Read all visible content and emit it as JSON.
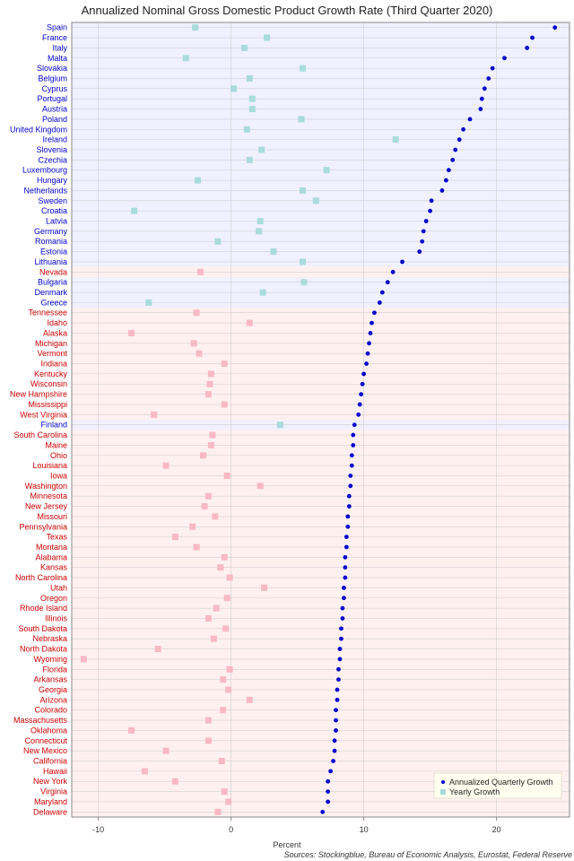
{
  "chart_data": {
    "type": "scatter",
    "title": "Annualized Nominal Gross Domestic Product Growth Rate (Third Quarter 2020)",
    "xlabel": "Percent",
    "source": "Sources: Stockingblue, Bureau of Economic Analysis, Eurostat, Federal Reserve",
    "xlim": [
      -12,
      25.5
    ],
    "xticks": [
      -10,
      0,
      10,
      20
    ],
    "grid": true,
    "legend_position": "bottom-right",
    "legend": [
      "Annualized Quarterly Growth",
      "Yearly Growth"
    ],
    "colors": {
      "eu_label": "#0000cc",
      "us_label": "#cc0000",
      "eu_band": "#f0f0ff",
      "us_band": "#fff0f0",
      "quarterly_point": "#0000cc",
      "eu_yearly": "#a8dcdc",
      "us_yearly": "#f9b8c4",
      "grid": "#d0d0d0"
    },
    "rows": [
      {
        "name": "Spain",
        "region": "eu",
        "quarterly": 24.4,
        "yearly": -2.7
      },
      {
        "name": "France",
        "region": "eu",
        "quarterly": 22.7,
        "yearly": 2.7
      },
      {
        "name": "Italy",
        "region": "eu",
        "quarterly": 22.3,
        "yearly": 1.0
      },
      {
        "name": "Malta",
        "region": "eu",
        "quarterly": 20.6,
        "yearly": -3.4
      },
      {
        "name": "Slovakia",
        "region": "eu",
        "quarterly": 19.7,
        "yearly": 5.4
      },
      {
        "name": "Belgium",
        "region": "eu",
        "quarterly": 19.4,
        "yearly": 1.4
      },
      {
        "name": "Cyprus",
        "region": "eu",
        "quarterly": 19.1,
        "yearly": 0.2
      },
      {
        "name": "Portugal",
        "region": "eu",
        "quarterly": 18.9,
        "yearly": 1.6
      },
      {
        "name": "Austria",
        "region": "eu",
        "quarterly": 18.8,
        "yearly": 1.6
      },
      {
        "name": "Poland",
        "region": "eu",
        "quarterly": 18.0,
        "yearly": 5.3
      },
      {
        "name": "United Kingdom",
        "region": "eu",
        "quarterly": 17.5,
        "yearly": 1.2
      },
      {
        "name": "Ireland",
        "region": "eu",
        "quarterly": 17.2,
        "yearly": 12.4
      },
      {
        "name": "Slovenia",
        "region": "eu",
        "quarterly": 16.9,
        "yearly": 2.3
      },
      {
        "name": "Czechia",
        "region": "eu",
        "quarterly": 16.7,
        "yearly": 1.4
      },
      {
        "name": "Luxembourg",
        "region": "eu",
        "quarterly": 16.4,
        "yearly": 7.2
      },
      {
        "name": "Hungary",
        "region": "eu",
        "quarterly": 16.2,
        "yearly": -2.5
      },
      {
        "name": "Netherlands",
        "region": "eu",
        "quarterly": 15.9,
        "yearly": 5.4
      },
      {
        "name": "Sweden",
        "region": "eu",
        "quarterly": 15.1,
        "yearly": 6.4
      },
      {
        "name": "Croatia",
        "region": "eu",
        "quarterly": 15.0,
        "yearly": -7.3
      },
      {
        "name": "Latvia",
        "region": "eu",
        "quarterly": 14.7,
        "yearly": 2.2
      },
      {
        "name": "Germany",
        "region": "eu",
        "quarterly": 14.5,
        "yearly": 2.1
      },
      {
        "name": "Romania",
        "region": "eu",
        "quarterly": 14.4,
        "yearly": -1.0
      },
      {
        "name": "Estonia",
        "region": "eu",
        "quarterly": 14.2,
        "yearly": 3.2
      },
      {
        "name": "Lithuania",
        "region": "eu",
        "quarterly": 12.9,
        "yearly": 5.4
      },
      {
        "name": "Nevada",
        "region": "us",
        "quarterly": 12.2,
        "yearly": -2.3
      },
      {
        "name": "Bulgaria",
        "region": "eu",
        "quarterly": 11.8,
        "yearly": 5.5
      },
      {
        "name": "Denmark",
        "region": "eu",
        "quarterly": 11.4,
        "yearly": 2.4
      },
      {
        "name": "Greece",
        "region": "eu",
        "quarterly": 11.2,
        "yearly": -6.2
      },
      {
        "name": "Tennessee",
        "region": "us",
        "quarterly": 10.8,
        "yearly": -2.6
      },
      {
        "name": "Idaho",
        "region": "us",
        "quarterly": 10.6,
        "yearly": 1.4
      },
      {
        "name": "Alaska",
        "region": "us",
        "quarterly": 10.5,
        "yearly": -7.5
      },
      {
        "name": "Michigan",
        "region": "us",
        "quarterly": 10.4,
        "yearly": -2.8
      },
      {
        "name": "Vermont",
        "region": "us",
        "quarterly": 10.3,
        "yearly": -2.4
      },
      {
        "name": "Indiana",
        "region": "us",
        "quarterly": 10.2,
        "yearly": -0.5
      },
      {
        "name": "Kentucky",
        "region": "us",
        "quarterly": 10.0,
        "yearly": -1.5
      },
      {
        "name": "Wisconsin",
        "region": "us",
        "quarterly": 9.9,
        "yearly": -1.6
      },
      {
        "name": "New Hampshire",
        "region": "us",
        "quarterly": 9.8,
        "yearly": -1.7
      },
      {
        "name": "Mississippi",
        "region": "us",
        "quarterly": 9.7,
        "yearly": -0.5
      },
      {
        "name": "West Virginia",
        "region": "us",
        "quarterly": 9.6,
        "yearly": -5.8
      },
      {
        "name": "Finland",
        "region": "eu",
        "quarterly": 9.3,
        "yearly": 3.7
      },
      {
        "name": "South Carolina",
        "region": "us",
        "quarterly": 9.2,
        "yearly": -1.4
      },
      {
        "name": "Maine",
        "region": "us",
        "quarterly": 9.2,
        "yearly": -1.5
      },
      {
        "name": "Ohio",
        "region": "us",
        "quarterly": 9.1,
        "yearly": -2.1
      },
      {
        "name": "Louisiana",
        "region": "us",
        "quarterly": 9.1,
        "yearly": -4.9
      },
      {
        "name": "Iowa",
        "region": "us",
        "quarterly": 9.0,
        "yearly": -0.3
      },
      {
        "name": "Washington",
        "region": "us",
        "quarterly": 9.0,
        "yearly": 2.2
      },
      {
        "name": "Minnesota",
        "region": "us",
        "quarterly": 8.9,
        "yearly": -1.7
      },
      {
        "name": "New Jersey",
        "region": "us",
        "quarterly": 8.9,
        "yearly": -2.0
      },
      {
        "name": "Missouri",
        "region": "us",
        "quarterly": 8.8,
        "yearly": -1.2
      },
      {
        "name": "Pennsylvania",
        "region": "us",
        "quarterly": 8.8,
        "yearly": -2.9
      },
      {
        "name": "Texas",
        "region": "us",
        "quarterly": 8.7,
        "yearly": -4.2
      },
      {
        "name": "Montana",
        "region": "us",
        "quarterly": 8.7,
        "yearly": -2.6
      },
      {
        "name": "Alabama",
        "region": "us",
        "quarterly": 8.6,
        "yearly": -0.5
      },
      {
        "name": "Kansas",
        "region": "us",
        "quarterly": 8.6,
        "yearly": -0.8
      },
      {
        "name": "North Carolina",
        "region": "us",
        "quarterly": 8.6,
        "yearly": -0.1
      },
      {
        "name": "Utah",
        "region": "us",
        "quarterly": 8.5,
        "yearly": 2.5
      },
      {
        "name": "Oregon",
        "region": "us",
        "quarterly": 8.5,
        "yearly": -0.3
      },
      {
        "name": "Rhode Island",
        "region": "us",
        "quarterly": 8.4,
        "yearly": -1.1
      },
      {
        "name": "Illinois",
        "region": "us",
        "quarterly": 8.4,
        "yearly": -1.7
      },
      {
        "name": "South Dakota",
        "region": "us",
        "quarterly": 8.3,
        "yearly": -0.4
      },
      {
        "name": "Nebraska",
        "region": "us",
        "quarterly": 8.3,
        "yearly": -1.3
      },
      {
        "name": "North Dakota",
        "region": "us",
        "quarterly": 8.2,
        "yearly": -5.5
      },
      {
        "name": "Wyoming",
        "region": "us",
        "quarterly": 8.2,
        "yearly": -11.1
      },
      {
        "name": "Florida",
        "region": "us",
        "quarterly": 8.1,
        "yearly": -0.1
      },
      {
        "name": "Arkansas",
        "region": "us",
        "quarterly": 8.1,
        "yearly": -0.6
      },
      {
        "name": "Georgia",
        "region": "us",
        "quarterly": 8.0,
        "yearly": -0.2
      },
      {
        "name": "Arizona",
        "region": "us",
        "quarterly": 8.0,
        "yearly": 1.4
      },
      {
        "name": "Colorado",
        "region": "us",
        "quarterly": 7.9,
        "yearly": -0.6
      },
      {
        "name": "Massachusetts",
        "region": "us",
        "quarterly": 7.9,
        "yearly": -1.7
      },
      {
        "name": "Oklahoma",
        "region": "us",
        "quarterly": 7.9,
        "yearly": -7.5
      },
      {
        "name": "Connecticut",
        "region": "us",
        "quarterly": 7.8,
        "yearly": -1.7
      },
      {
        "name": "New Mexico",
        "region": "us",
        "quarterly": 7.8,
        "yearly": -4.9
      },
      {
        "name": "California",
        "region": "us",
        "quarterly": 7.7,
        "yearly": -0.7
      },
      {
        "name": "Hawaii",
        "region": "us",
        "quarterly": 7.5,
        "yearly": -6.5
      },
      {
        "name": "New York",
        "region": "us",
        "quarterly": 7.3,
        "yearly": -4.2
      },
      {
        "name": "Virginia",
        "region": "us",
        "quarterly": 7.3,
        "yearly": -0.5
      },
      {
        "name": "Maryland",
        "region": "us",
        "quarterly": 7.3,
        "yearly": -0.2
      },
      {
        "name": "Delaware",
        "region": "us",
        "quarterly": 6.9,
        "yearly": -1.0
      }
    ]
  }
}
